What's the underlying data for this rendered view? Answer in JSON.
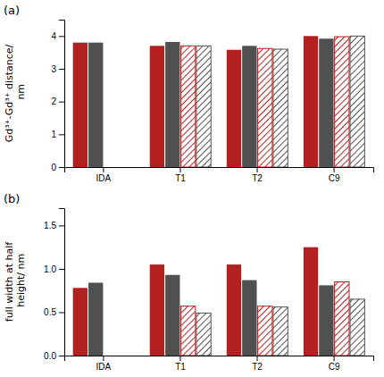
{
  "chart_data": [
    {
      "type": "bar",
      "title": "(a)",
      "categories": [
        "IDA",
        "T1",
        "T2",
        "C9"
      ],
      "series": [
        {
          "color": "#b22020",
          "values": [
            3.8,
            3.7,
            3.58,
            4.0
          ]
        },
        {
          "color": "#505050",
          "values": [
            3.8,
            3.82,
            3.7,
            3.92
          ]
        },
        {
          "color": "#b22020",
          "values": [
            null,
            3.7,
            3.62,
            3.98
          ]
        },
        {
          "color": "#505050",
          "values": [
            null,
            3.7,
            3.6,
            4.0
          ]
        }
      ],
      "ylabel": "Gd³⁺-Gd³⁺ distance/\n nm",
      "ylim": [
        0,
        4.5
      ],
      "yticks": [
        0,
        1,
        2,
        3,
        4
      ]
    },
    {
      "type": "bar",
      "title": "(b)",
      "categories": [
        "IDA",
        "T1",
        "T2",
        "C9"
      ],
      "series": [
        {
          "color": "#b22020",
          "values": [
            0.78,
            1.05,
            1.05,
            1.25
          ]
        },
        {
          "color": "#505050",
          "values": [
            0.84,
            0.93,
            0.87,
            0.81
          ]
        },
        {
          "color": "#b22020",
          "values": [
            null,
            0.57,
            0.57,
            0.85
          ]
        },
        {
          "color": "#505050",
          "values": [
            null,
            0.49,
            0.56,
            0.65
          ]
        }
      ],
      "ylabel": "full width at half\n height/ nm",
      "ylim": [
        0,
        1.7
      ],
      "yticks": [
        {
          "value": 0,
          "label": "0.0"
        },
        0.5,
        {
          "value": 1,
          "label": "1.0"
        },
        1.5
      ]
    }
  ]
}
